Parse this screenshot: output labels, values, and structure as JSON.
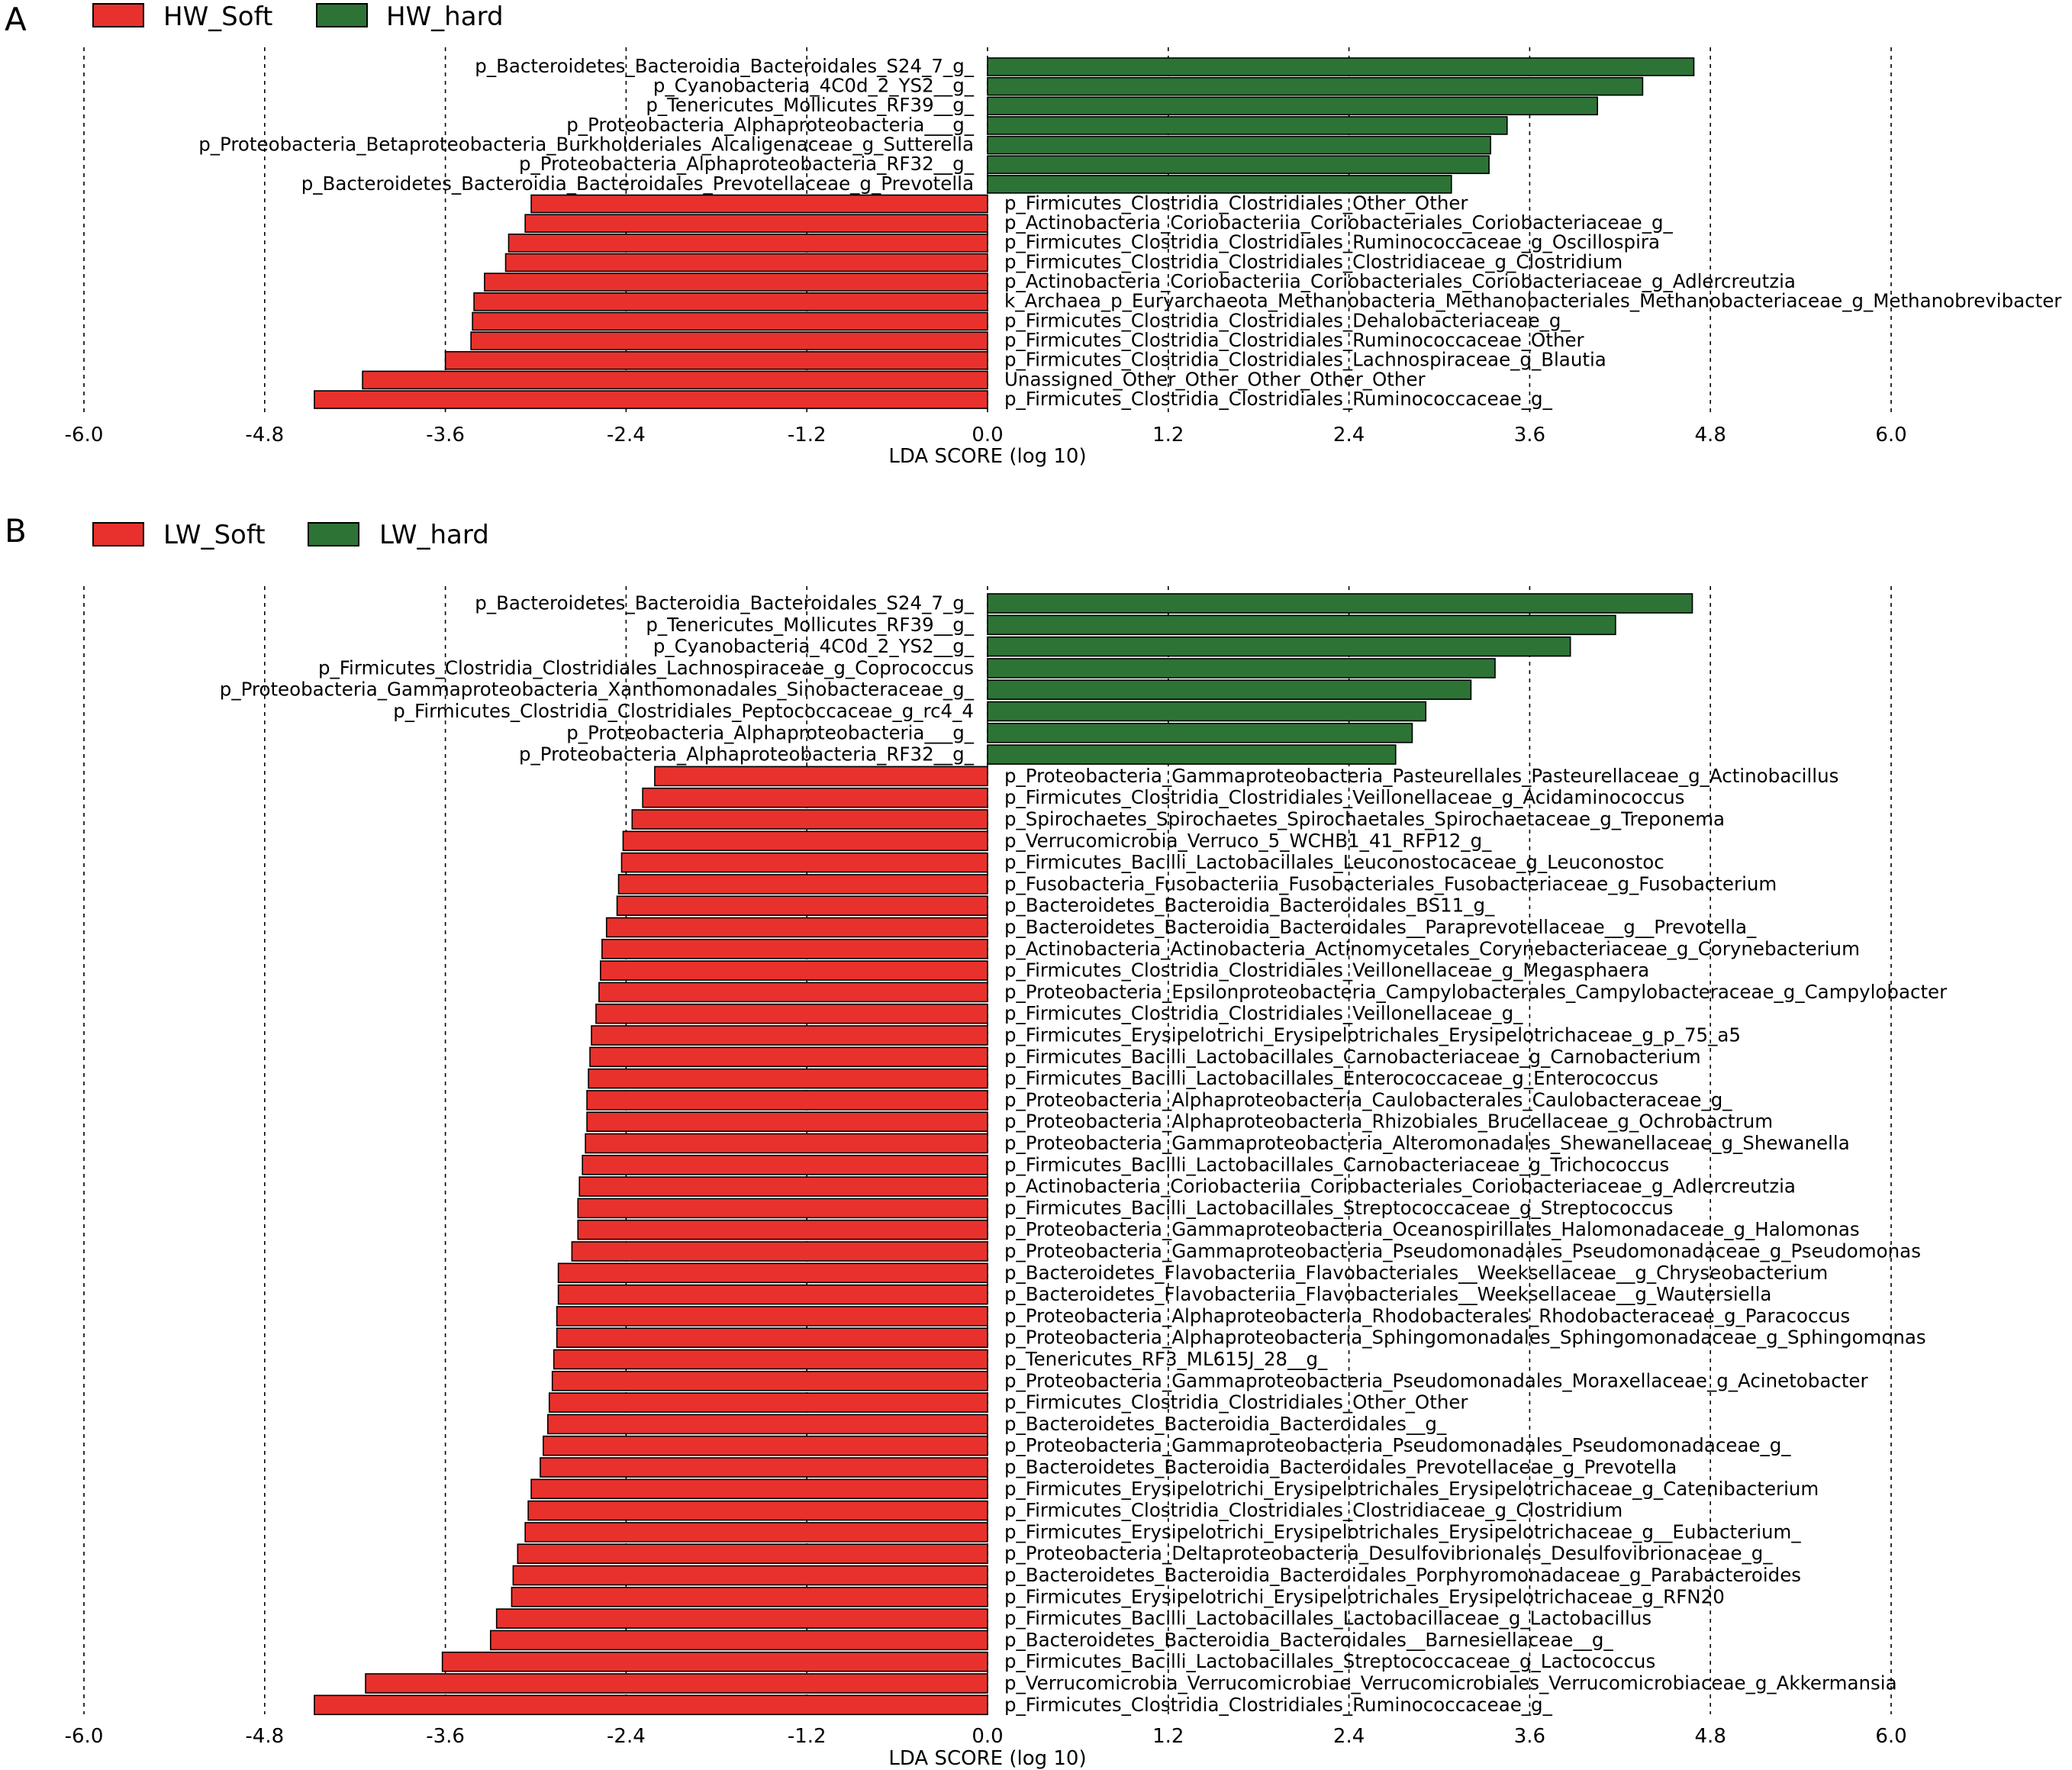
{
  "colors": {
    "soft": "#e8312c",
    "hard": "#2d7336",
    "bar_stroke": "#000000",
    "grid": "#000000"
  },
  "chart_data": [
    {
      "type": "bar",
      "orientation": "horizontal",
      "panel": "A",
      "xlabel": "LDA SCORE (log 10)",
      "xlim": [
        -6.0,
        6.0
      ],
      "xticks": [
        "-6.0",
        "-4.8",
        "-3.6",
        "-2.4",
        "-1.2",
        "0.0",
        "1.2",
        "2.4",
        "3.6",
        "4.8",
        "6.0"
      ],
      "grid": "vertical dashed",
      "legend": [
        {
          "name": "HW_Soft",
          "color": "soft"
        },
        {
          "name": "HW_hard",
          "color": "hard"
        }
      ],
      "bars": [
        {
          "label": "p_Bacteroidetes_Bacteroidia_Bacteroidales_S24_7_g_",
          "value": 4.69,
          "group": "hard"
        },
        {
          "label": "p_Cyanobacteria_4C0d_2_YS2__g_",
          "value": 4.35,
          "group": "hard"
        },
        {
          "label": "p_Tenericutes_Mollicutes_RF39__g_",
          "value": 4.05,
          "group": "hard"
        },
        {
          "label": "p_Proteobacteria_Alphaproteobacteria___g_",
          "value": 3.45,
          "group": "hard"
        },
        {
          "label": "p_Proteobacteria_Betaproteobacteria_Burkholderiales_Alcaligenaceae_g_Sutterella",
          "value": 3.34,
          "group": "hard"
        },
        {
          "label": "p_Proteobacteria_Alphaproteobacteria_RF32__g_",
          "value": 3.33,
          "group": "hard"
        },
        {
          "label": "p_Bacteroidetes_Bacteroidia_Bacteroidales_Prevotellaceae_g_Prevotella",
          "value": 3.08,
          "group": "hard"
        },
        {
          "label": "p_Firmicutes_Clostridia_Clostridiales_Other_Other",
          "value": -3.03,
          "group": "soft"
        },
        {
          "label": "p_Actinobacteria_Coriobacteriia_Coriobacteriales_Coriobacteriaceae_g_",
          "value": -3.07,
          "group": "soft"
        },
        {
          "label": "p_Firmicutes_Clostridia_Clostridiales_Ruminococcaceae_g_Oscillospira",
          "value": -3.18,
          "group": "soft"
        },
        {
          "label": "p_Firmicutes_Clostridia_Clostridiales_Clostridiaceae_g_Clostridium",
          "value": -3.2,
          "group": "soft"
        },
        {
          "label": "p_Actinobacteria_Coriobacteriia_Coriobacteriales_Coriobacteriaceae_g_Adlercreutzia",
          "value": -3.34,
          "group": "soft"
        },
        {
          "label": "k_Archaea_p_Euryarchaeota_Methanobacteria_Methanobacteriales_Methanobacteriaceae_g_Methanobrevibacter",
          "value": -3.41,
          "group": "soft"
        },
        {
          "label": "p_Firmicutes_Clostridia_Clostridiales_Dehalobacteriaceae_g_",
          "value": -3.42,
          "group": "soft"
        },
        {
          "label": "p_Firmicutes_Clostridia_Clostridiales_Ruminococcaceae_Other",
          "value": -3.43,
          "group": "soft"
        },
        {
          "label": "p_Firmicutes_Clostridia_Clostridiales_Lachnospiraceae_g_Blautia",
          "value": -3.6,
          "group": "soft"
        },
        {
          "label": "Unassigned_Other_Other_Other_Other_Other",
          "value": -4.15,
          "group": "soft"
        },
        {
          "label": "p_Firmicutes_Clostridia_Clostridiales_Ruminococcaceae_g_",
          "value": -4.47,
          "group": "soft"
        }
      ]
    },
    {
      "type": "bar",
      "orientation": "horizontal",
      "panel": "B",
      "xlabel": "LDA SCORE (log 10)",
      "xlim": [
        -6.0,
        6.0
      ],
      "xticks": [
        "-6.0",
        "-4.8",
        "-3.6",
        "-2.4",
        "-1.2",
        "0.0",
        "1.2",
        "2.4",
        "3.6",
        "4.8",
        "6.0"
      ],
      "grid": "vertical dashed",
      "legend": [
        {
          "name": "LW_Soft",
          "color": "soft"
        },
        {
          "name": "LW_hard",
          "color": "hard"
        }
      ],
      "bars": [
        {
          "label": "p_Bacteroidetes_Bacteroidia_Bacteroidales_S24_7_g_",
          "value": 4.68,
          "group": "hard"
        },
        {
          "label": "p_Tenericutes_Mollicutes_RF39__g_",
          "value": 4.17,
          "group": "hard"
        },
        {
          "label": "p_Cyanobacteria_4C0d_2_YS2__g_",
          "value": 3.87,
          "group": "hard"
        },
        {
          "label": "p_Firmicutes_Clostridia_Clostridiales_Lachnospiraceae_g_Coprococcus",
          "value": 3.37,
          "group": "hard"
        },
        {
          "label": "p_Proteobacteria_Gammaproteobacteria_Xanthomonadales_Sinobacteraceae_g_",
          "value": 3.21,
          "group": "hard"
        },
        {
          "label": "p_Firmicutes_Clostridia_Clostridiales_Peptococcaceae_g_rc4_4",
          "value": 2.91,
          "group": "hard"
        },
        {
          "label": "p_Proteobacteria_Alphaproteobacteria___g_",
          "value": 2.82,
          "group": "hard"
        },
        {
          "label": "p_Proteobacteria_Alphaproteobacteria_RF32__g_",
          "value": 2.71,
          "group": "hard"
        },
        {
          "label": "p_Proteobacteria_Gammaproteobacteria_Pasteurellales_Pasteurellaceae_g_Actinobacillus",
          "value": -2.21,
          "group": "soft"
        },
        {
          "label": "p_Firmicutes_Clostridia_Clostridiales_Veillonellaceae_g_Acidaminococcus",
          "value": -2.29,
          "group": "soft"
        },
        {
          "label": "p_Spirochaetes_Spirochaetes_Spirochaetales_Spirochaetaceae_g_Treponema",
          "value": -2.36,
          "group": "soft"
        },
        {
          "label": "p_Verrucomicrobia_Verruco_5_WCHB1_41_RFP12_g_",
          "value": -2.42,
          "group": "soft"
        },
        {
          "label": "p_Firmicutes_Bacilli_Lactobacillales_Leuconostocaceae_g_Leuconostoc",
          "value": -2.43,
          "group": "soft"
        },
        {
          "label": "p_Fusobacteria_Fusobacteriia_Fusobacteriales_Fusobacteriaceae_g_Fusobacterium",
          "value": -2.45,
          "group": "soft"
        },
        {
          "label": "p_Bacteroidetes_Bacteroidia_Bacteroidales_BS11_g_",
          "value": -2.46,
          "group": "soft"
        },
        {
          "label": "p_Bacteroidetes_Bacteroidia_Bacteroidales__Paraprevotellaceae__g__Prevotella_",
          "value": -2.53,
          "group": "soft"
        },
        {
          "label": "p_Actinobacteria_Actinobacteria_Actinomycetales_Corynebacteriaceae_g_Corynebacterium",
          "value": -2.56,
          "group": "soft"
        },
        {
          "label": "p_Firmicutes_Clostridia_Clostridiales_Veillonellaceae_g_Megasphaera",
          "value": -2.57,
          "group": "soft"
        },
        {
          "label": "p_Proteobacteria_Epsilonproteobacteria_Campylobacterales_Campylobacteraceae_g_Campylobacter",
          "value": -2.58,
          "group": "soft"
        },
        {
          "label": "p_Firmicutes_Clostridia_Clostridiales_Veillonellaceae_g_",
          "value": -2.6,
          "group": "soft"
        },
        {
          "label": "p_Firmicutes_Erysipelotrichi_Erysipelotrichales_Erysipelotrichaceae_g_p_75_a5",
          "value": -2.63,
          "group": "soft"
        },
        {
          "label": "p_Firmicutes_Bacilli_Lactobacillales_Carnobacteriaceae_g_Carnobacterium",
          "value": -2.64,
          "group": "soft"
        },
        {
          "label": "p_Firmicutes_Bacilli_Lactobacillales_Enterococcaceae_g_Enterococcus",
          "value": -2.65,
          "group": "soft"
        },
        {
          "label": "p_Proteobacteria_Alphaproteobacteria_Caulobacterales_Caulobacteraceae_g_",
          "value": -2.66,
          "group": "soft"
        },
        {
          "label": "p_Proteobacteria_Alphaproteobacteria_Rhizobiales_Brucellaceae_g_Ochrobactrum",
          "value": -2.66,
          "group": "soft"
        },
        {
          "label": "p_Proteobacteria_Gammaproteobacteria_Alteromonadales_Shewanellaceae_g_Shewanella",
          "value": -2.67,
          "group": "soft"
        },
        {
          "label": "p_Firmicutes_Bacilli_Lactobacillales_Carnobacteriaceae_g_Trichococcus",
          "value": -2.69,
          "group": "soft"
        },
        {
          "label": "p_Actinobacteria_Coriobacteriia_Coriobacteriales_Coriobacteriaceae_g_Adlercreutzia",
          "value": -2.71,
          "group": "soft"
        },
        {
          "label": "p_Firmicutes_Bacilli_Lactobacillales_Streptococcaceae_g_Streptococcus",
          "value": -2.72,
          "group": "soft"
        },
        {
          "label": "p_Proteobacteria_Gammaproteobacteria_Oceanospirillales_Halomonadaceae_g_Halomonas",
          "value": -2.72,
          "group": "soft"
        },
        {
          "label": "p_Proteobacteria_Gammaproteobacteria_Pseudomonadales_Pseudomonadaceae_g_Pseudomonas",
          "value": -2.76,
          "group": "soft"
        },
        {
          "label": "p_Bacteroidetes_Flavobacteriia_Flavobacteriales__Weeksellaceae__g_Chryseobacterium",
          "value": -2.85,
          "group": "soft"
        },
        {
          "label": "p_Bacteroidetes_Flavobacteriia_Flavobacteriales__Weeksellaceae__g_Wautersiella",
          "value": -2.85,
          "group": "soft"
        },
        {
          "label": "p_Proteobacteria_Alphaproteobacteria_Rhodobacterales_Rhodobacteraceae_g_Paracoccus",
          "value": -2.86,
          "group": "soft"
        },
        {
          "label": "p_Proteobacteria_Alphaproteobacteria_Sphingomonadales_Sphingomonadaceae_g_Sphingomonas",
          "value": -2.86,
          "group": "soft"
        },
        {
          "label": "p_Tenericutes_RF3_ML615J_28__g_",
          "value": -2.88,
          "group": "soft"
        },
        {
          "label": "p_Proteobacteria_Gammaproteobacteria_Pseudomonadales_Moraxellaceae_g_Acinetobacter",
          "value": -2.89,
          "group": "soft"
        },
        {
          "label": "p_Firmicutes_Clostridia_Clostridiales_Other_Other",
          "value": -2.91,
          "group": "soft"
        },
        {
          "label": "p_Bacteroidetes_Bacteroidia_Bacteroidales__g_",
          "value": -2.92,
          "group": "soft"
        },
        {
          "label": "p_Proteobacteria_Gammaproteobacteria_Pseudomonadales_Pseudomonadaceae_g_",
          "value": -2.95,
          "group": "soft"
        },
        {
          "label": "p_Bacteroidetes_Bacteroidia_Bacteroidales_Prevotellaceae_g_Prevotella",
          "value": -2.97,
          "group": "soft"
        },
        {
          "label": "p_Firmicutes_Erysipelotrichi_Erysipelotrichales_Erysipelotrichaceae_g_Catenibacterium",
          "value": -3.03,
          "group": "soft"
        },
        {
          "label": "p_Firmicutes_Clostridia_Clostridiales_Clostridiaceae_g_Clostridium",
          "value": -3.05,
          "group": "soft"
        },
        {
          "label": "p_Firmicutes_Erysipelotrichi_Erysipelotrichales_Erysipelotrichaceae_g__Eubacterium_",
          "value": -3.07,
          "group": "soft"
        },
        {
          "label": "p_Proteobacteria_Deltaproteobacteria_Desulfovibrionales_Desulfovibrionaceae_g_",
          "value": -3.12,
          "group": "soft"
        },
        {
          "label": "p_Bacteroidetes_Bacteroidia_Bacteroidales_Porphyromonadaceae_g_Parabacteroides",
          "value": -3.15,
          "group": "soft"
        },
        {
          "label": "p_Firmicutes_Erysipelotrichi_Erysipelotrichales_Erysipelotrichaceae_g_RFN20",
          "value": -3.16,
          "group": "soft"
        },
        {
          "label": "p_Firmicutes_Bacilli_Lactobacillales_Lactobacillaceae_g_Lactobacillus",
          "value": -3.26,
          "group": "soft"
        },
        {
          "label": "p_Bacteroidetes_Bacteroidia_Bacteroidales__Barnesiellaceae__g_",
          "value": -3.3,
          "group": "soft"
        },
        {
          "label": "p_Firmicutes_Bacilli_Lactobacillales_Streptococcaceae_g_Lactococcus",
          "value": -3.62,
          "group": "soft"
        },
        {
          "label": "p_Verrucomicrobia_Verrucomicrobiae_Verrucomicrobiales_Verrucomicrobiaceae_g_Akkermansia",
          "value": -4.13,
          "group": "soft"
        },
        {
          "label": "p_Firmicutes_Clostridia_Clostridiales_Ruminococcaceae_g_",
          "value": -4.47,
          "group": "soft"
        }
      ]
    }
  ]
}
